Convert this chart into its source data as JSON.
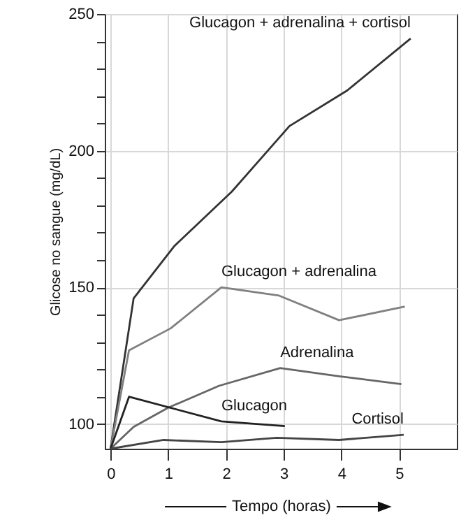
{
  "chart_data": {
    "type": "line",
    "xlabel": "Tempo (horas)",
    "ylabel": "Glicose no sangue (mg/dL)",
    "xlim": [
      -0.1,
      6
    ],
    "xticks": [
      0,
      1,
      2,
      3,
      4,
      5
    ],
    "ylim": [
      91,
      250
    ],
    "yticks": [
      100,
      {
        "value": 110,
        "label": null
      },
      {
        "value": 120,
        "label": null
      },
      {
        "value": 130,
        "label": null
      },
      {
        "value": 140,
        "label": null
      },
      150,
      {
        "value": 160,
        "label": null
      },
      {
        "value": 170,
        "label": null
      },
      {
        "value": 180,
        "label": null
      },
      {
        "value": 190,
        "label": null
      },
      200,
      {
        "value": 210,
        "label": null
      },
      {
        "value": 220,
        "label": null
      },
      {
        "value": 230,
        "label": null
      },
      {
        "value": 240,
        "label": null
      },
      250
    ],
    "grid": true,
    "legend": false,
    "marker": "none",
    "line_style": "solid",
    "series": [
      {
        "name": "Glucagon + adrenalina + cortisol",
        "color": "#333333",
        "x": [
          0,
          0.4,
          1.1,
          2.1,
          3.1,
          4.1,
          5.2
        ],
        "values": [
          91,
          146,
          165,
          185,
          209,
          222,
          241
        ]
      },
      {
        "name": "Glucagon + adrenalina",
        "color": "#808080",
        "x": [
          0,
          0.32,
          1.04,
          1.92,
          2.92,
          3.96,
          5.1
        ],
        "values": [
          91,
          127,
          135,
          150,
          147,
          138,
          143
        ]
      },
      {
        "name": "Adrenalina",
        "color": "#666666",
        "x": [
          0,
          0.4,
          1.0,
          1.88,
          2.94,
          3.96,
          5.04
        ],
        "values": [
          91,
          99,
          106,
          114,
          120.5,
          117.5,
          114.6
        ]
      },
      {
        "name": "Glucagon",
        "color": "#222222",
        "x": [
          0,
          0.32,
          1.92,
          3.02
        ],
        "values": [
          91,
          110,
          101,
          99.3
        ]
      },
      {
        "name": "Cortisol",
        "color": "#444444",
        "x": [
          0,
          0.92,
          1.92,
          2.88,
          3.96,
          5.08
        ],
        "values": [
          91,
          94.2,
          93.4,
          95,
          94.2,
          96.1
        ]
      }
    ]
  }
}
